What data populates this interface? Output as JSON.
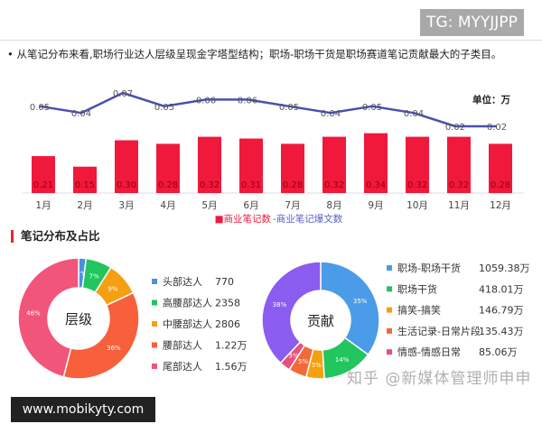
{
  "badge": "TG: MYYJJPP",
  "summary": "从笔记分布来看,职场行业达人层级呈现金字塔型结构；职场-职场干货是职场赛道笔记贡献最大的子类目。",
  "section_title": "笔记分布及占比",
  "site": "www.mobikyty.com",
  "watermark": "知乎 @新媒体管理师申申",
  "chart_data": [
    {
      "type": "bar+line",
      "unit_label": "单位：万",
      "categories": [
        "1月",
        "2月",
        "3月",
        "4月",
        "5月",
        "6月",
        "7月",
        "8月",
        "9月",
        "10月",
        "11月",
        "12月"
      ],
      "series": [
        {
          "name": "商业笔记数",
          "type": "bar",
          "color": "#f0193c",
          "values": [
            0.21,
            0.15,
            0.3,
            0.28,
            0.32,
            0.31,
            0.28,
            0.32,
            0.34,
            0.32,
            0.32,
            0.28
          ],
          "labels": [
            "0.21",
            "0.15",
            "0.30",
            "0.28",
            "0.32",
            "0.31",
            "0.28",
            "0.32",
            "0.34",
            "0.32",
            "0.32",
            "0.28"
          ]
        },
        {
          "name": "商业笔记爆文数",
          "type": "line",
          "color": "#4a4fb0",
          "values": [
            0.05,
            0.04,
            0.07,
            0.05,
            0.06,
            0.06,
            0.05,
            0.04,
            0.05,
            0.04,
            0.02,
            0.02
          ],
          "labels": [
            "0.05",
            "0.04",
            "0.07",
            "0.05",
            "0.06",
            "0.06",
            "0.05",
            "0.04",
            "0.05",
            "0.04",
            "0.02",
            "0.02"
          ]
        }
      ],
      "legend": {
        "bar": "■商业笔记数",
        "line": "-商业笔记爆文数"
      },
      "legend_position": "bottom"
    },
    {
      "type": "pie",
      "title": "层级",
      "slices": [
        {
          "label": "头部达人",
          "value": "770",
          "pct": "2%",
          "p": 2,
          "color": "#4a90e2"
        },
        {
          "label": "高腰部达人",
          "value": "2358",
          "pct": "7%",
          "p": 7,
          "color": "#22c55e"
        },
        {
          "label": "中腰部达人",
          "value": "2806",
          "pct": "9%",
          "p": 9,
          "color": "#f5a011"
        },
        {
          "label": "腰部达人",
          "value": "1.22万",
          "pct": "36%",
          "p": 36,
          "color": "#f7603a"
        },
        {
          "label": "尾部达人",
          "value": "1.56万",
          "pct": "46%",
          "p": 46,
          "color": "#f2557a"
        }
      ]
    },
    {
      "type": "pie",
      "title": "贡献",
      "slices": [
        {
          "label": "职场-职场干货",
          "value": "1059.38万",
          "pct": "35%",
          "p": 35,
          "color": "#4a9be8"
        },
        {
          "label": "职场干货",
          "value": "418.01万",
          "pct": "14%",
          "p": 14,
          "color": "#22c55e"
        },
        {
          "label": "搞笑-搞笑",
          "value": "146.79万",
          "pct": "5%",
          "p": 5,
          "color": "#f5a011"
        },
        {
          "label": "生活记录-日常片段",
          "value": "135.43万",
          "pct": "5%",
          "p": 5,
          "color": "#f26a3a"
        },
        {
          "label": "情感-情感日常",
          "value": "85.06万",
          "pct": "3%",
          "p": 3,
          "color": "#e8507a"
        },
        {
          "label": "",
          "value": "",
          "pct": "38%",
          "p": 38,
          "color": "#8a5cf0"
        }
      ]
    }
  ]
}
